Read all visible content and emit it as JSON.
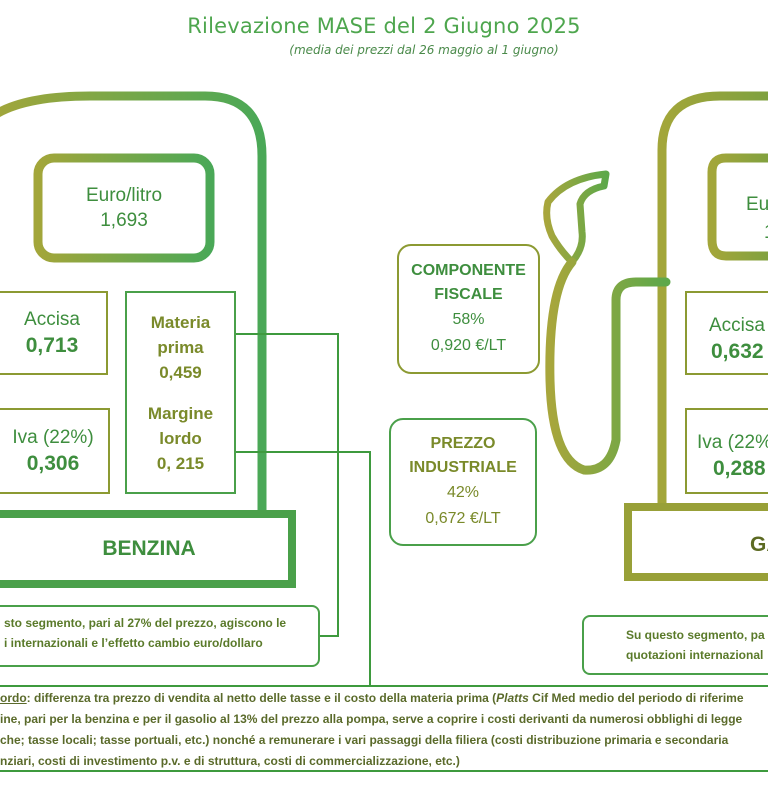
{
  "header": {
    "title": "Rilevazione MASE del 2 Giugno 2025",
    "subtitle": "(media dei prezzi dal 26 maggio al 1 giugno)"
  },
  "benzina": {
    "price_label": "Euro/litro",
    "price_value": "1,693",
    "accisa_label": "Accisa",
    "accisa_value": "0,713",
    "iva_label": "Iva (22%)",
    "iva_value": "0,306",
    "materia_label_1": "Materia",
    "materia_label_2": "prima",
    "materia_value": "0,459",
    "margine_label_1": "Margine",
    "margine_label_2": "lordo",
    "margine_value": "0, 215",
    "name": "BENZINA",
    "note_line_1": "sto segmento, pari al 27% del prezzo, agiscono le",
    "note_line_2": "i internazionali e l’effetto cambio euro/dollaro"
  },
  "center": {
    "fiscale_line_1": "COMPONENTE",
    "fiscale_line_2": "FISCALE",
    "fiscale_pct": "58%",
    "fiscale_eur": "0,920 €/LT",
    "industriale_line_1": "PREZZO",
    "industriale_line_2": "INDUSTRIALE",
    "industriale_pct": "42%",
    "industriale_eur": "0,672 €/LT"
  },
  "gasolio": {
    "price_label": "Eur",
    "price_value": "1",
    "accisa_label": "Accisa",
    "accisa_value": "0,632",
    "iva_label": "Iva (22%",
    "iva_value": "0,288",
    "name": "GA",
    "note_line_1": "Su questo segmento, pa",
    "note_line_2": "quotazioni internazional"
  },
  "footnote": {
    "line_1_term": "ordo",
    "line_1_a": ": differenza tra prezzo di vendita al netto delle tasse e il costo della materia prima (",
    "line_1_platts": "Platts",
    "line_1_b": " Cif Med medio del periodo di riferime",
    "line_2": "ine, pari per la benzina e per il gasolio al 13% del prezzo alla pompa, serve a coprire i costi derivanti da numerosi obblighi di legge",
    "line_3": "che; tasse locali; tasse portuali, etc.) nonché a remunerare i vari passaggi della filiera (costi distribuzione primaria e secondaria",
    "line_4": "nziari, costi di investimento p.v. e di struttura, costi di commercializzazione, etc.)"
  },
  "colors": {
    "olive": "#8c9a32",
    "green": "#4aa04a"
  }
}
